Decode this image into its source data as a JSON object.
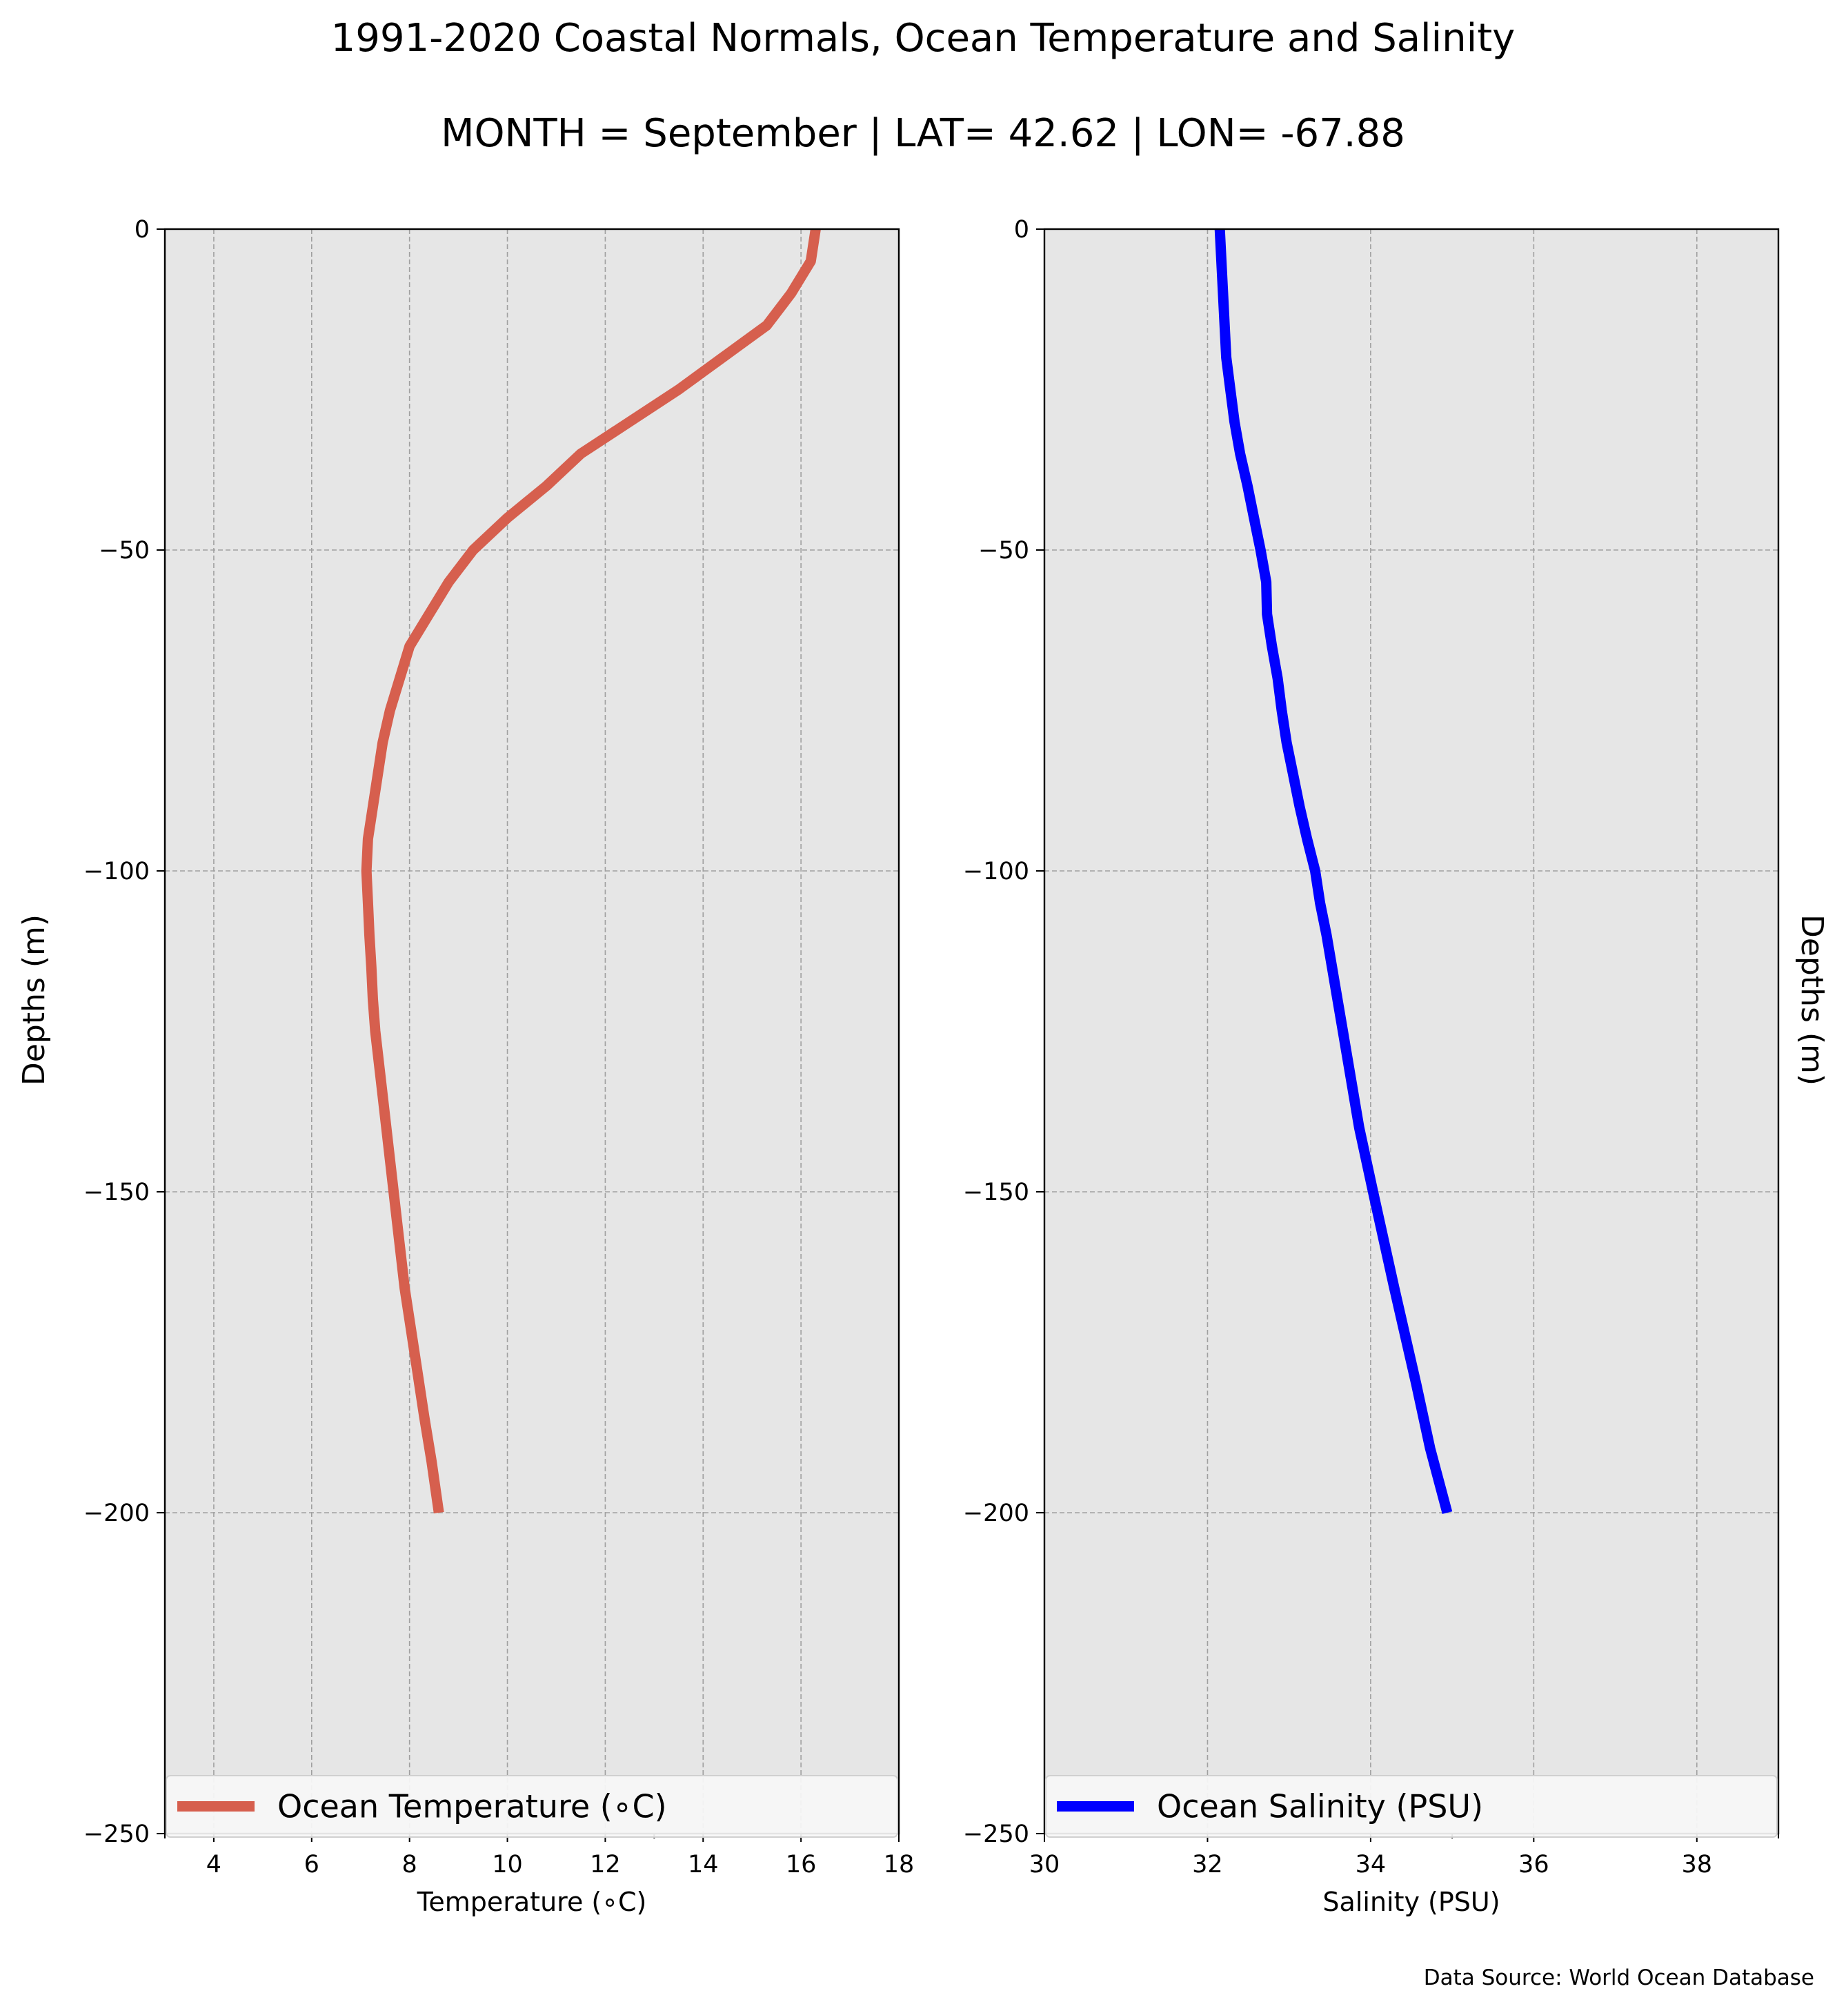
{
  "figure": {
    "title": "1991-2020 Coastal Normals, Ocean Temperature and Salinity",
    "subtitle": "MONTH = September | LAT= 42.62 | LON= -67.88",
    "source": "Data Source: World Ocean Database",
    "background_color": "#e6e6e6",
    "grid_color": "#a0a0a0"
  },
  "chart_data": [
    {
      "type": "line",
      "xlabel": "Temperature (∘C)",
      "ylabel": "Depths (m)",
      "xlim": [
        3,
        18
      ],
      "ylim": [
        -250,
        0
      ],
      "xticks": [
        4,
        6,
        8,
        10,
        12,
        14,
        16,
        18
      ],
      "yticks": [
        0,
        -50,
        -100,
        -150,
        -200,
        -250
      ],
      "grid": true,
      "legend_position": "bottom",
      "series": [
        {
          "name": "Ocean Temperature (∘C)",
          "color": "#d65f4e",
          "x": [
            16.3,
            16.2,
            15.8,
            15.3,
            14.4,
            13.5,
            12.5,
            11.5,
            10.8,
            10.0,
            9.3,
            8.8,
            8.4,
            8.0,
            7.8,
            7.6,
            7.45,
            7.35,
            7.25,
            7.15,
            7.12,
            7.15,
            7.18,
            7.22,
            7.25,
            7.3,
            7.45,
            7.6,
            7.75,
            7.9,
            8.0,
            8.1,
            8.3,
            8.45,
            8.6
          ],
          "y": [
            0,
            -5,
            -10,
            -15,
            -20,
            -25,
            -30,
            -35,
            -40,
            -45,
            -50,
            -55,
            -60,
            -65,
            -70,
            -75,
            -80,
            -85,
            -90,
            -95,
            -100,
            -105,
            -110,
            -115,
            -120,
            -125,
            -135,
            -145,
            -155,
            -165,
            -170,
            -175,
            -185,
            -192,
            -200
          ]
        }
      ]
    },
    {
      "type": "line",
      "xlabel": "Salinity (PSU)",
      "ylabel": "Depths (m)",
      "xlim": [
        30,
        39
      ],
      "ylim": [
        -250,
        0
      ],
      "xticks": [
        30,
        32,
        34,
        36,
        38
      ],
      "yticks": [
        0,
        -50,
        -100,
        -150,
        -200,
        -250
      ],
      "grid": true,
      "legend_position": "bottom",
      "series": [
        {
          "name": "Ocean Salinity (PSU)",
          "color": "#0000ff",
          "x": [
            32.15,
            32.19,
            32.23,
            32.28,
            32.33,
            32.4,
            32.49,
            32.57,
            32.65,
            32.72,
            32.73,
            32.79,
            32.86,
            32.91,
            32.97,
            33.05,
            33.13,
            33.22,
            33.32,
            33.38,
            33.46,
            33.66,
            33.86,
            34.03,
            34.29,
            34.56,
            34.73,
            34.94
          ],
          "y": [
            0,
            -10,
            -20,
            -25,
            -30,
            -35,
            -40,
            -45,
            -50,
            -55,
            -60,
            -65,
            -70,
            -75,
            -80,
            -85,
            -90,
            -95,
            -100,
            -105,
            -110,
            -125,
            -140,
            -150,
            -165,
            -180,
            -190,
            -200
          ]
        }
      ]
    }
  ]
}
